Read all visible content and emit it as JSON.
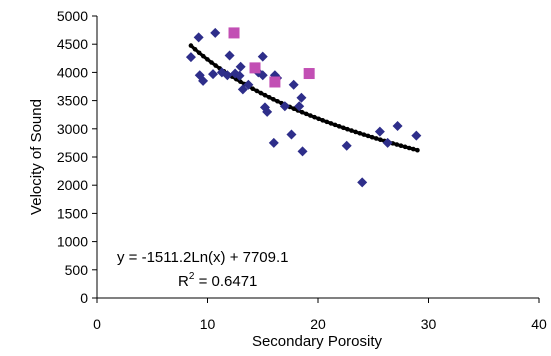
{
  "chart_data": {
    "type": "scatter",
    "xlabel": "Secondary Porosity",
    "ylabel": "Velocity of Sound",
    "xlim": [
      0,
      40
    ],
    "ylim": [
      0,
      5000
    ],
    "xticks": [
      "0",
      "10",
      "20",
      "30",
      "40"
    ],
    "yticks": [
      "0",
      "500",
      "1000",
      "1500",
      "2000",
      "2500",
      "3000",
      "3500",
      "4000",
      "4500",
      "5000"
    ],
    "grid": false,
    "legend": "none",
    "series": [
      {
        "marker": "diamond",
        "color": "#2e2e8a",
        "points": [
          [
            8.5,
            4270
          ],
          [
            9.2,
            4620
          ],
          [
            9.3,
            3950
          ],
          [
            9.6,
            3850
          ],
          [
            10.5,
            3970
          ],
          [
            10.7,
            4700
          ],
          [
            11.3,
            4000
          ],
          [
            11.8,
            3950
          ],
          [
            12.0,
            4300
          ],
          [
            12.5,
            3980
          ],
          [
            12.9,
            3940
          ],
          [
            13.0,
            4100
          ],
          [
            13.2,
            3700
          ],
          [
            13.7,
            3780
          ],
          [
            14.6,
            4000
          ],
          [
            15.0,
            4280
          ],
          [
            15.0,
            3950
          ],
          [
            15.2,
            3380
          ],
          [
            15.4,
            3300
          ],
          [
            16.1,
            3950
          ],
          [
            16.0,
            2750
          ],
          [
            16.3,
            3900
          ],
          [
            17.0,
            3400
          ],
          [
            17.6,
            2900
          ],
          [
            17.8,
            3780
          ],
          [
            18.3,
            3400
          ],
          [
            18.5,
            3550
          ],
          [
            18.6,
            2600
          ],
          [
            22.6,
            2700
          ],
          [
            24.0,
            2050
          ],
          [
            25.6,
            2950
          ],
          [
            26.3,
            2750
          ],
          [
            27.2,
            3050
          ],
          [
            28.9,
            2880
          ]
        ]
      },
      {
        "marker": "square",
        "color": "#c24fb4",
        "points": [
          [
            12.4,
            4700
          ],
          [
            14.3,
            4080
          ],
          [
            16.1,
            3830
          ],
          [
            19.2,
            3980
          ]
        ]
      }
    ],
    "trendline": {
      "type": "logarithmic",
      "a": -1511.2,
      "b": 7709.1,
      "x_range": [
        8.5,
        29
      ],
      "color": "#000000"
    },
    "annotations": {
      "equation": "y = -1511.2Ln(x) + 7709.1",
      "r_squared_base": "R",
      "r_squared_exp": "2",
      "r_squared_value": " = 0.6471"
    }
  }
}
